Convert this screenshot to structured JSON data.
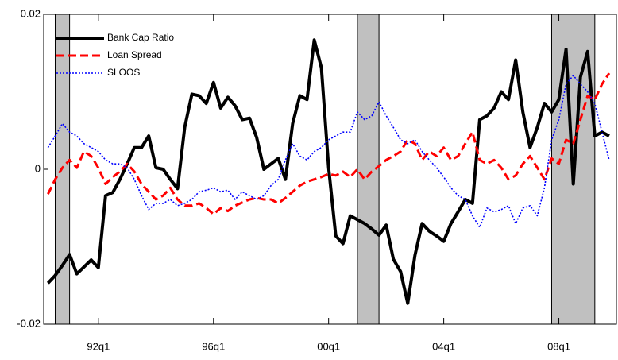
{
  "chart_data": {
    "type": "line",
    "x": [
      1990.25,
      1990.5,
      1990.75,
      1991,
      1991.25,
      1991.5,
      1991.75,
      1992,
      1992.25,
      1992.5,
      1992.75,
      1993,
      1993.25,
      1993.5,
      1993.75,
      1994,
      1994.25,
      1994.5,
      1994.75,
      1995,
      1995.25,
      1995.5,
      1995.75,
      1996,
      1996.25,
      1996.5,
      1996.75,
      1997,
      1997.25,
      1997.5,
      1997.75,
      1998,
      1998.25,
      1998.5,
      1998.75,
      1999,
      1999.25,
      1999.5,
      1999.75,
      2000,
      2000.25,
      2000.5,
      2000.75,
      2001,
      2001.25,
      2001.5,
      2001.75,
      2002,
      2002.25,
      2002.5,
      2002.75,
      2003,
      2003.25,
      2003.5,
      2003.75,
      2004,
      2004.25,
      2004.5,
      2004.75,
      2005,
      2005.25,
      2005.5,
      2005.75,
      2006,
      2006.25,
      2006.5,
      2006.75,
      2007,
      2007.25,
      2007.5,
      2007.75,
      2008,
      2008.25,
      2008.5,
      2008.75,
      2009,
      2009.25,
      2009.5,
      2009.75
    ],
    "series": [
      {
        "name": "Bank Cap Ratio",
        "color": "#000000",
        "style": "solid",
        "values": [
          -0.0147,
          -0.0137,
          -0.0124,
          -0.011,
          -0.0135,
          -0.0126,
          -0.0117,
          -0.0127,
          -0.0034,
          -0.003,
          -0.0013,
          0.0007,
          0.0028,
          0.0028,
          0.0043,
          0.0002,
          0,
          -0.0013,
          -0.0025,
          0.0054,
          0.0097,
          0.0095,
          0.0085,
          0.0112,
          0.0079,
          0.0093,
          0.0082,
          0.0064,
          0.0066,
          0.0041,
          0,
          0.0007,
          0.0014,
          -0.0013,
          0.0059,
          0.0095,
          0.009,
          0.0167,
          0.0131,
          0.0002,
          -0.0086,
          -0.0096,
          -0.006,
          -0.0065,
          -0.007,
          -0.0077,
          -0.0085,
          -0.0072,
          -0.0116,
          -0.0132,
          -0.0173,
          -0.0111,
          -0.007,
          -0.008,
          -0.0086,
          -0.0093,
          -0.007,
          -0.0055,
          -0.0039,
          -0.0044,
          0.0064,
          0.0069,
          0.0079,
          0.01,
          0.009,
          0.0141,
          0.0074,
          0.0028,
          0.0054,
          0.0085,
          0.0074,
          0.009,
          0.0155,
          -0.0019,
          0.0119,
          0.0152,
          0.0043,
          0.0048,
          0.0043
        ]
      },
      {
        "name": "Loan Spread",
        "color": "#ff0000",
        "style": "dashed",
        "values": [
          -0.0032,
          -0.0013,
          0.0002,
          0.0012,
          0.0002,
          0.0023,
          0.0017,
          0.0002,
          -0.0019,
          -0.001,
          -0.0003,
          0.0007,
          -0.0003,
          -0.0019,
          -0.0029,
          -0.0039,
          -0.0034,
          -0.0024,
          -0.0039,
          -0.0047,
          -0.0047,
          -0.0044,
          -0.005,
          -0.0058,
          -0.005,
          -0.0054,
          -0.0047,
          -0.0043,
          -0.0039,
          -0.0037,
          -0.0039,
          -0.0039,
          -0.0044,
          -0.0037,
          -0.0029,
          -0.0021,
          -0.0016,
          -0.0013,
          -0.001,
          -0.0006,
          -0.0008,
          -0.0003,
          -0.001,
          0,
          -0.0013,
          -0.0003,
          0.0004,
          0.0012,
          0.0017,
          0.0023,
          0.0038,
          0.0033,
          0.0012,
          0.0023,
          0.0017,
          0.0028,
          0.0012,
          0.0017,
          0.0033,
          0.0048,
          0.0012,
          0.0007,
          0.0012,
          0.0002,
          -0.0013,
          -0.0008,
          0.0007,
          0.0017,
          0.0002,
          -0.0013,
          0.0014,
          0.0007,
          0.0038,
          0.0033,
          0.0064,
          0.0095,
          0.009,
          0.011,
          0.0124
        ]
      },
      {
        "name": "SLOOS",
        "color": "#0000ff",
        "style": "dotted",
        "values": [
          0.0028,
          0.0043,
          0.0059,
          0.0048,
          0.0043,
          0.0033,
          0.0028,
          0.0023,
          0.0012,
          0.0007,
          0.0007,
          0.0002,
          -0.0013,
          -0.0034,
          -0.0052,
          -0.0044,
          -0.0044,
          -0.0039,
          -0.0047,
          -0.0044,
          -0.0039,
          -0.0029,
          -0.0027,
          -0.0024,
          -0.0029,
          -0.0027,
          -0.0039,
          -0.0029,
          -0.0034,
          -0.0039,
          -0.0034,
          -0.0021,
          -0.0013,
          0.0012,
          0.0033,
          0.0017,
          0.0012,
          0.0023,
          0.0028,
          0.0038,
          0.0043,
          0.0048,
          0.0048,
          0.0074,
          0.0064,
          0.0069,
          0.0087,
          0.0069,
          0.0054,
          0.0038,
          0.0033,
          0.0038,
          0.0023,
          0.0012,
          0.0002,
          -0.001,
          -0.0024,
          -0.0034,
          -0.0039,
          -0.006,
          -0.0075,
          -0.005,
          -0.0055,
          -0.0052,
          -0.0047,
          -0.007,
          -0.005,
          -0.0047,
          -0.006,
          -0.0024,
          0.0038,
          0.0064,
          0.011,
          0.0121,
          0.011,
          0.01,
          0.0085,
          0.0048,
          0.0012
        ]
      }
    ],
    "shaded_periods": [
      [
        1990.5,
        1991
      ],
      [
        2001,
        2001.75
      ],
      [
        2007.75,
        2009.25
      ]
    ],
    "shade_color": "#c0c0c0",
    "xlim": [
      1990.1,
      2010
    ],
    "xticks": [
      {
        "value": 1992,
        "label": "92q1"
      },
      {
        "value": 1996,
        "label": "96q1"
      },
      {
        "value": 2000,
        "label": "00q1"
      },
      {
        "value": 2004,
        "label": "04q1"
      },
      {
        "value": 2008,
        "label": "08q1"
      }
    ],
    "ylim": [
      -0.02,
      0.02
    ],
    "yticks": [
      -0.02,
      0,
      0.02
    ],
    "legend": "upper-left"
  }
}
